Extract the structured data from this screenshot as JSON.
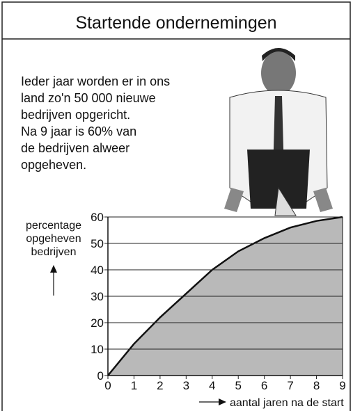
{
  "chart_data": {
    "type": "area",
    "title": "Startende ondernemingen",
    "intro_lines": [
      "Ieder jaar worden er in ons",
      "land zo'n 50 000 nieuwe",
      "bedrijven opgericht.",
      "Na 9 jaar is 60% van",
      "de bedrijven alweer",
      "opgeheven."
    ],
    "y_label_lines": [
      "percentage",
      "opgeheven",
      "bedrijven"
    ],
    "x_label": "aantal jaren na de start",
    "x": [
      0,
      1,
      2,
      3,
      4,
      5,
      6,
      7,
      8,
      9
    ],
    "values": [
      0,
      12,
      22,
      31,
      40,
      47,
      52,
      56,
      58.5,
      60
    ],
    "color": "#b9b9b9",
    "xlim": [
      0,
      9
    ],
    "ylim": [
      0,
      60
    ],
    "xticks": [
      0,
      1,
      2,
      3,
      4,
      5,
      6,
      7,
      8,
      9
    ],
    "yticks": [
      0,
      10,
      20,
      30,
      40,
      50,
      60
    ],
    "grid": true
  }
}
